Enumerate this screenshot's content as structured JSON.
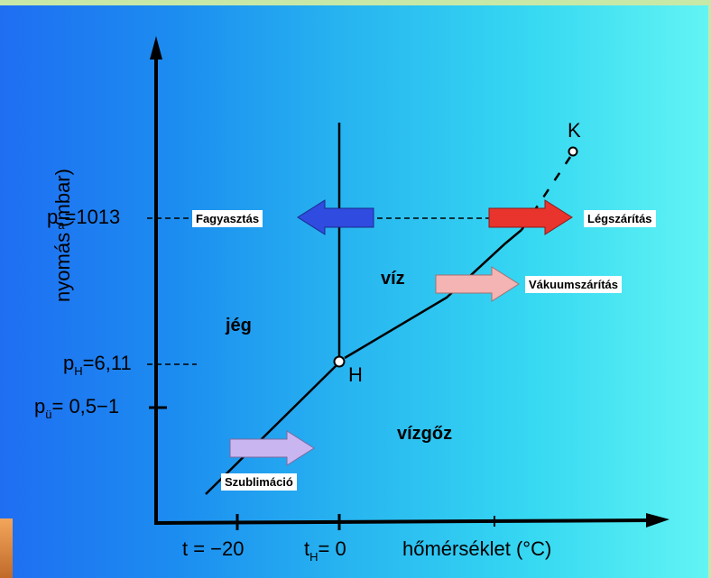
{
  "axes": {
    "y_label": "nyomás  (mbar)",
    "x_label": "hőmérséklet  (°C)"
  },
  "y_ticks": {
    "pa": {
      "p": "p",
      "sub": "a",
      "value": "=1013"
    },
    "pH": {
      "p": "p",
      "sub": "H",
      "value": "=6,11"
    },
    "pu": {
      "p": "p",
      "sub": "ü",
      "value": "= 0,5−1"
    }
  },
  "x_ticks": {
    "t20": "t = −20",
    "tH": {
      "t": "t",
      "sub": "H",
      "value": "= 0"
    }
  },
  "points": {
    "K": "K",
    "H": "H"
  },
  "regions": {
    "ice": "jég",
    "water": "víz",
    "vapor": "vízgőz"
  },
  "processes": {
    "freezing": "Fagyasztás",
    "air_drying": "Légszárítás",
    "vacuum_drying": "Vákuumszárítás",
    "sublimation": "Szublimáció"
  },
  "colors": {
    "freezing_arrow": "#2f4be0",
    "air_drying_arrow": "#e8342c",
    "vacuum_drying_arrow": "#f4b4b4",
    "sublimation_arrow": "#c9b6f0"
  }
}
